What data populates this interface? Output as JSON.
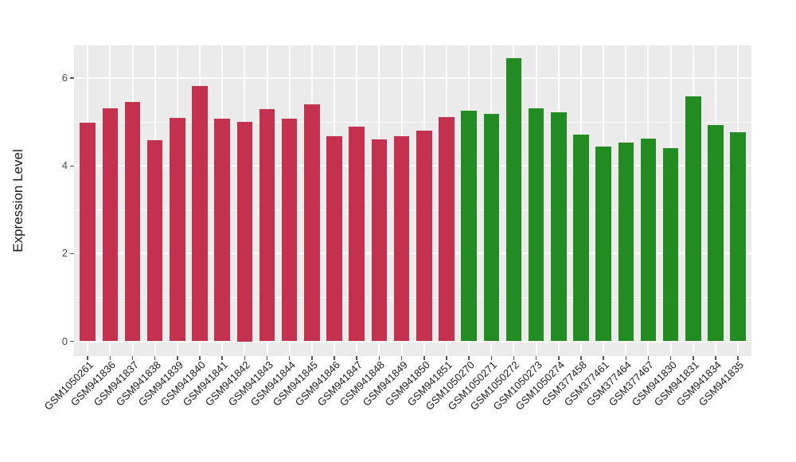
{
  "figure": {
    "background_color": "#ffffff",
    "panel_background_color": "#EBEBEB",
    "gridline_color": "#ffffff",
    "tick_mark_color": "#555555",
    "axis_text_color": "#4d4d4d",
    "axis_title_color": "#1a1a1a"
  },
  "chart_data": {
    "type": "bar",
    "title": "",
    "xlabel": "",
    "ylabel": "Expression Level",
    "legend": "none",
    "grid": "white major gridlines at 0,2,4,6 and minor at 1,3,5; vertical major gridline at each category",
    "ylim": [
      -0.34,
      6.75
    ],
    "ytick_labels": [
      "0",
      "2",
      "4",
      "6"
    ],
    "ytick_values": [
      0,
      2,
      4,
      6
    ],
    "yminor_values": [
      1,
      3,
      5
    ],
    "categories": [
      "GSM1050261",
      "GSM941836",
      "GSM941837",
      "GSM941838",
      "GSM941839",
      "GSM941840",
      "GSM941841",
      "GSM941842",
      "GSM941843",
      "GSM941844",
      "GSM941845",
      "GSM941846",
      "GSM941847",
      "GSM941848",
      "GSM941849",
      "GSM941850",
      "GSM941851",
      "GSM1050270",
      "GSM1050271",
      "GSM1050272",
      "GSM1050273",
      "GSM1050274",
      "GSM377458",
      "GSM377461",
      "GSM377464",
      "GSM377467",
      "GSM941830",
      "GSM941831",
      "GSM941834",
      "GSM941835"
    ],
    "values": [
      4.98,
      5.32,
      5.45,
      4.59,
      5.1,
      5.83,
      5.08,
      5.0,
      5.29,
      5.07,
      5.4,
      4.68,
      4.89,
      4.61,
      4.67,
      4.81,
      5.12,
      5.26,
      5.19,
      6.45,
      5.31,
      5.22,
      4.72,
      4.44,
      4.54,
      4.62,
      4.4,
      5.58,
      4.93,
      4.77
    ],
    "groups": [
      {
        "name": "group-1",
        "color": "#C3314F",
        "from": 0,
        "to": 16
      },
      {
        "name": "group-2",
        "color": "#228B22",
        "from": 17,
        "to": 29
      }
    ]
  }
}
